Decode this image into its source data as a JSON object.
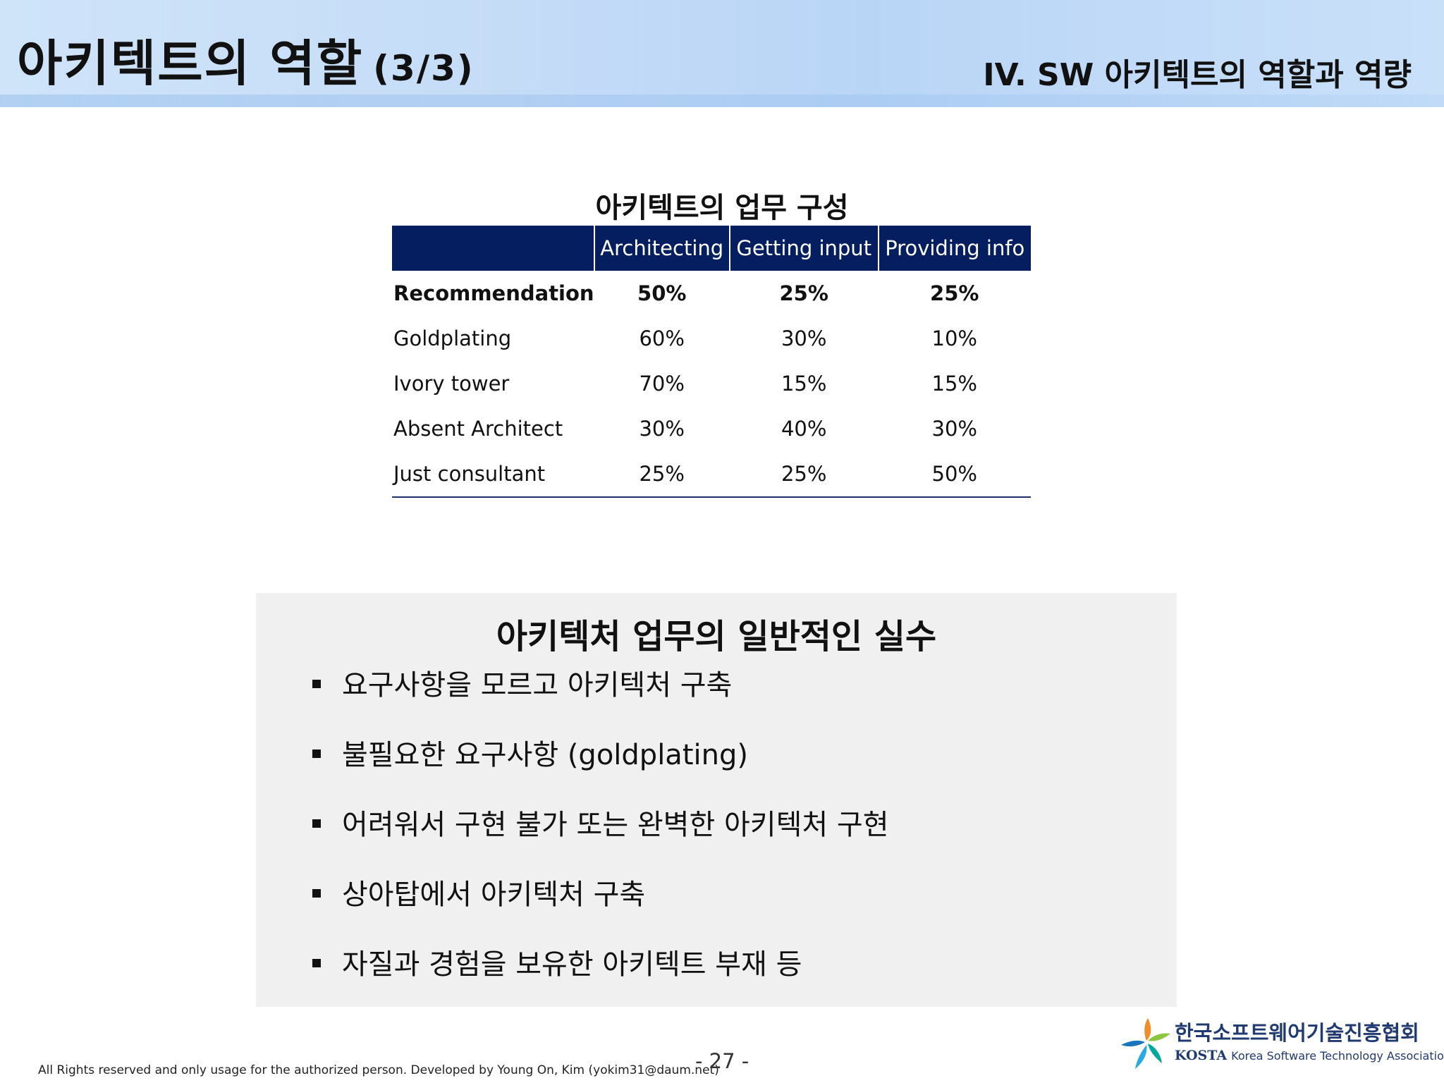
{
  "header": {
    "title": "아키텍트의 역할",
    "title_num": "(3/3)",
    "section": "IV. SW 아키텍트의 역할과 역량"
  },
  "roles_table": {
    "title": "아키텍트의 업무 구성",
    "columns": [
      "",
      "Architecting",
      "Getting input",
      "Providing info"
    ],
    "rows": [
      {
        "label": "Recommendation",
        "values": [
          "50%",
          "25%",
          "25%"
        ]
      },
      {
        "label": "Goldplating",
        "values": [
          "60%",
          "30%",
          "10%"
        ]
      },
      {
        "label": "Ivory tower",
        "values": [
          "70%",
          "15%",
          "15%"
        ]
      },
      {
        "label": "Absent Architect",
        "values": [
          "30%",
          "40%",
          "30%"
        ]
      },
      {
        "label": "Just consultant",
        "values": [
          "25%",
          "25%",
          "50%"
        ]
      }
    ]
  },
  "mistakes": {
    "title": "아키텍처 업무의 일반적인 실수",
    "items": [
      "요구사항을 모르고 아키텍처 구축",
      "불필요한 요구사항 (goldplating)",
      "어려워서 구현 불가 또는 완벽한 아키텍처 구현",
      "상아탑에서 아키텍처 구축",
      "자질과 경험을 보유한 아키텍트 부재 등"
    ]
  },
  "footer": {
    "copyright": "All Rights reserved and only usage for the authorized person. Developed by Young On, Kim (yokim31@daum.net)",
    "page": "- 27 -"
  },
  "logo": {
    "korean_name": "한국소프트웨어기술진흥협회",
    "acronym": "KOSTA",
    "english_name": "Korea Software Technology Association"
  }
}
